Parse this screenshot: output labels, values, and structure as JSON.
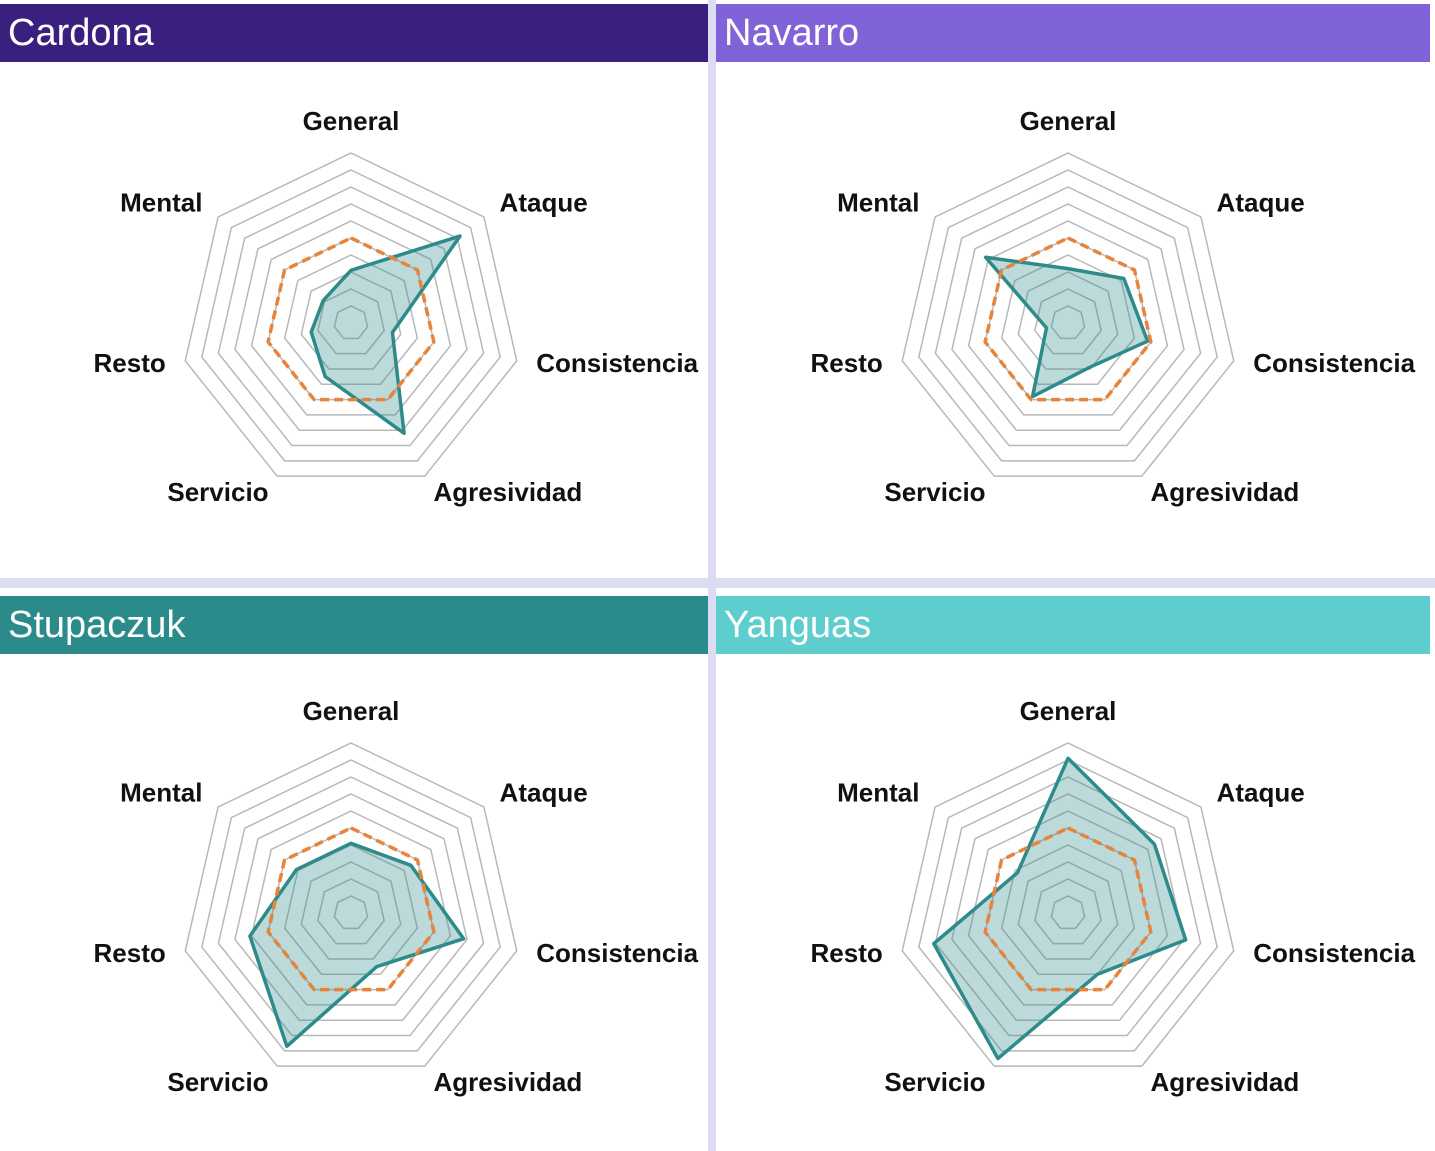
{
  "chart_data": [
    {
      "type": "radar",
      "title": "Cardona",
      "title_color": "#3a1f7e",
      "categories": [
        "General",
        "Ataque",
        "Consistencia",
        "Agresividad",
        "Servicio",
        "Resto",
        "Mental"
      ],
      "ylim": [
        0,
        10
      ],
      "yticks": [
        1,
        2,
        3,
        4,
        5,
        6,
        7,
        8,
        9,
        10
      ],
      "series": [
        {
          "color": "#2e8b8b",
          "style": "solid",
          "values": [
            3.1,
            8.2,
            2.5,
            7.2,
            3.5,
            2.4,
            2.1
          ]
        },
        {
          "color": "#e8843a",
          "style": "dashed",
          "values": [
            5,
            5,
            5,
            5,
            5,
            5,
            5
          ]
        }
      ]
    },
    {
      "type": "radar",
      "title": "Navarro",
      "title_color": "#8063d8",
      "categories": [
        "General",
        "Ataque",
        "Consistencia",
        "Agresividad",
        "Servicio",
        "Resto",
        "Mental"
      ],
      "ylim": [
        0,
        10
      ],
      "yticks": [
        1,
        2,
        3,
        4,
        5,
        6,
        7,
        8,
        9,
        10
      ],
      "series": [
        {
          "color": "#2e8b8b",
          "style": "solid",
          "values": [
            3.2,
            4.2,
            4.8,
            2.9,
            4.8,
            1.3,
            6.2
          ]
        },
        {
          "color": "#e8843a",
          "style": "dashed",
          "values": [
            5,
            5,
            5,
            5,
            5,
            5,
            5
          ]
        }
      ]
    },
    {
      "type": "radar",
      "title": "Stupaczuk",
      "title_color": "#2b8a8a",
      "categories": [
        "General",
        "Ataque",
        "Consistencia",
        "Agresividad",
        "Servicio",
        "Resto",
        "Mental"
      ],
      "ylim": [
        0,
        10
      ],
      "yticks": [
        1,
        2,
        3,
        4,
        5,
        6,
        7,
        8,
        9,
        10
      ],
      "series": [
        {
          "color": "#2e8b8b",
          "style": "solid",
          "values": [
            4.1,
            4.5,
            6.8,
            3.5,
            8.7,
            6.1,
            4.1
          ]
        },
        {
          "color": "#e8843a",
          "style": "dashed",
          "values": [
            5,
            5,
            5,
            5,
            5,
            5,
            5
          ]
        }
      ]
    },
    {
      "type": "radar",
      "title": "Yanguas",
      "title_color": "#5ecdce",
      "categories": [
        "General",
        "Ataque",
        "Consistencia",
        "Agresividad",
        "Servicio",
        "Resto",
        "Mental"
      ],
      "ylim": [
        0,
        10
      ],
      "yticks": [
        1,
        2,
        3,
        4,
        5,
        6,
        7,
        8,
        9,
        10
      ],
      "series": [
        {
          "color": "#2e8b8b",
          "style": "solid",
          "values": [
            9.1,
            6.5,
            7.1,
            4.0,
            9.5,
            8.1,
            3.8
          ]
        },
        {
          "color": "#e8843a",
          "style": "dashed",
          "values": [
            5,
            5,
            5,
            5,
            5,
            5,
            5
          ]
        }
      ]
    }
  ]
}
